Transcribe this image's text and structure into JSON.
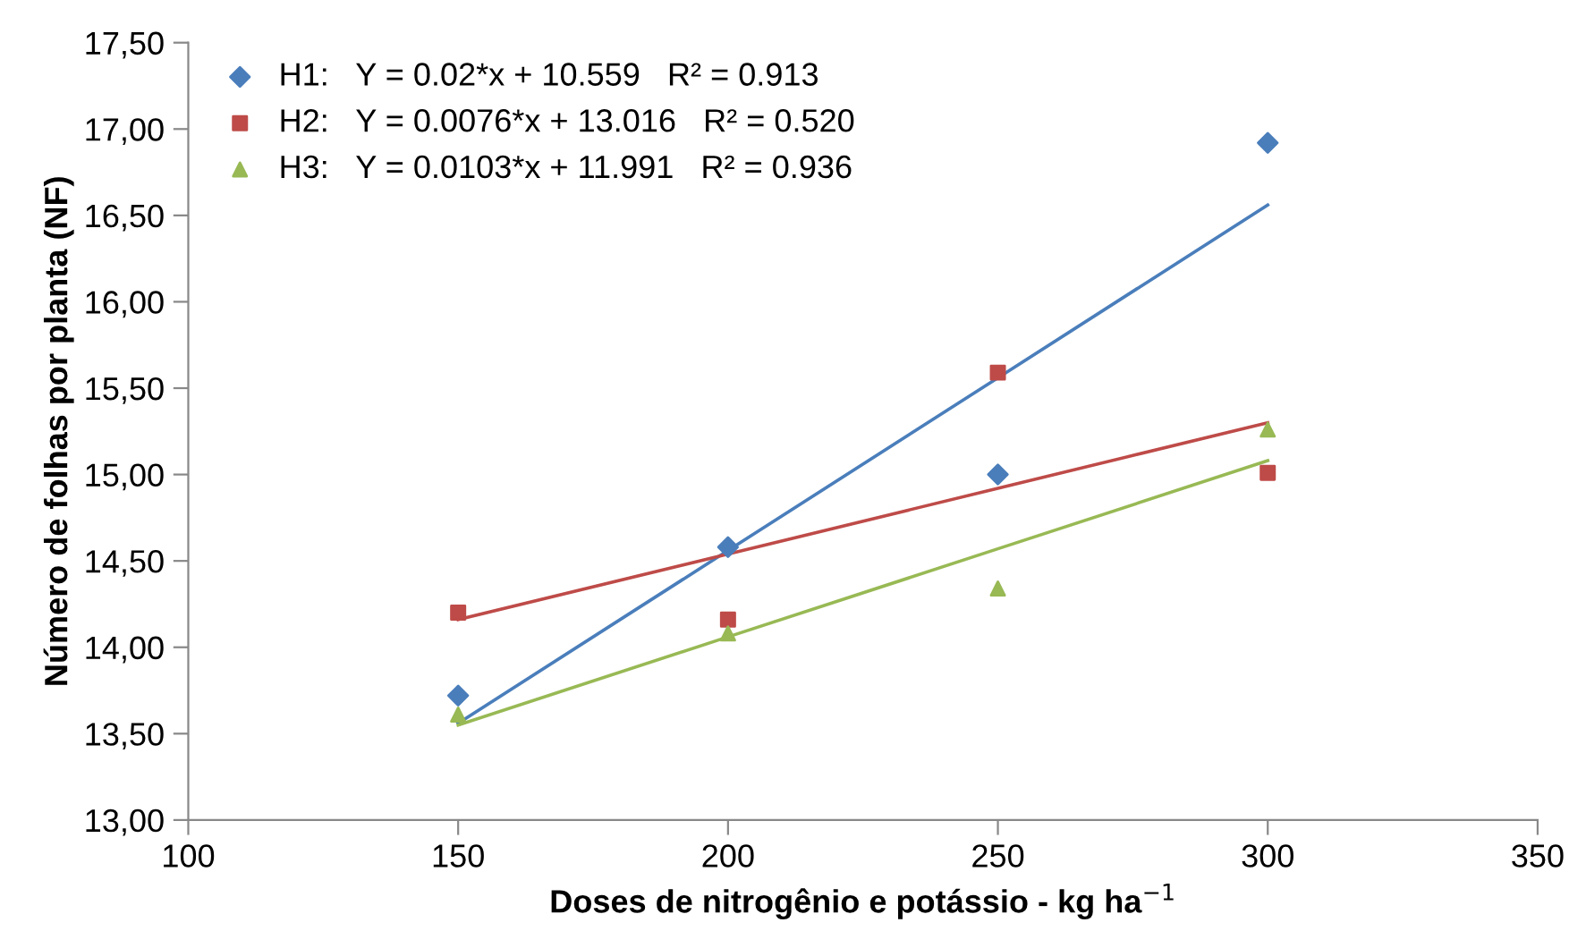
{
  "chart_data": {
    "type": "scatter",
    "xlabel": "Doses de nitrogênio e potássio - kg ha$^{−1}$",
    "ylabel": "Número de folhas por planta (NF)",
    "x": [
      150,
      200,
      250,
      300
    ],
    "series": [
      {
        "name": "H1:   Y = 0.02*x + 10.559   R² = 0.913",
        "color": "#4a7ebb",
        "marker": "diamond",
        "values": [
          13.72,
          14.58,
          15.0,
          16.92
        ]
      },
      {
        "name": "H2:   Y = 0.0076*x + 13.016   R² = 0.520",
        "color": "#be4b48",
        "marker": "square",
        "values": [
          14.2,
          14.16,
          15.59,
          15.01
        ]
      },
      {
        "name": "H3:   Y = 0.0103*x + 11.991   R² = 0.936",
        "color": "#98b954",
        "marker": "triangle",
        "values": [
          13.61,
          14.08,
          14.34,
          15.26
        ]
      },
      {
        "type": "line",
        "color": "#4a7ebb",
        "values": [
          13.56,
          14.56,
          15.56,
          16.56
        ]
      },
      {
        "type": "line",
        "color": "#be4b48",
        "values": [
          14.16,
          14.54,
          14.92,
          15.3
        ]
      },
      {
        "type": "line",
        "color": "#98b954",
        "values": [
          13.55,
          14.06,
          14.57,
          15.08
        ]
      }
    ],
    "xlim": [
      100,
      350
    ],
    "xticks": [
      100,
      150,
      200,
      250,
      300,
      350
    ],
    "ylim": [
      13,
      17.5
    ],
    "yticks": [
      {
        "value": 13,
        "label": "13,00"
      },
      {
        "value": 13.5,
        "label": "13,50"
      },
      {
        "value": 14,
        "label": "14,00"
      },
      {
        "value": 14.5,
        "label": "14,50"
      },
      {
        "value": 15,
        "label": "15,00"
      },
      {
        "value": 15.5,
        "label": "15,50"
      },
      {
        "value": 16,
        "label": "16,00"
      },
      {
        "value": 16.5,
        "label": "16,50"
      },
      {
        "value": 17,
        "label": "17,00"
      },
      {
        "value": 17.5,
        "label": "17,50"
      }
    ],
    "grid": false,
    "legend": "top left"
  }
}
